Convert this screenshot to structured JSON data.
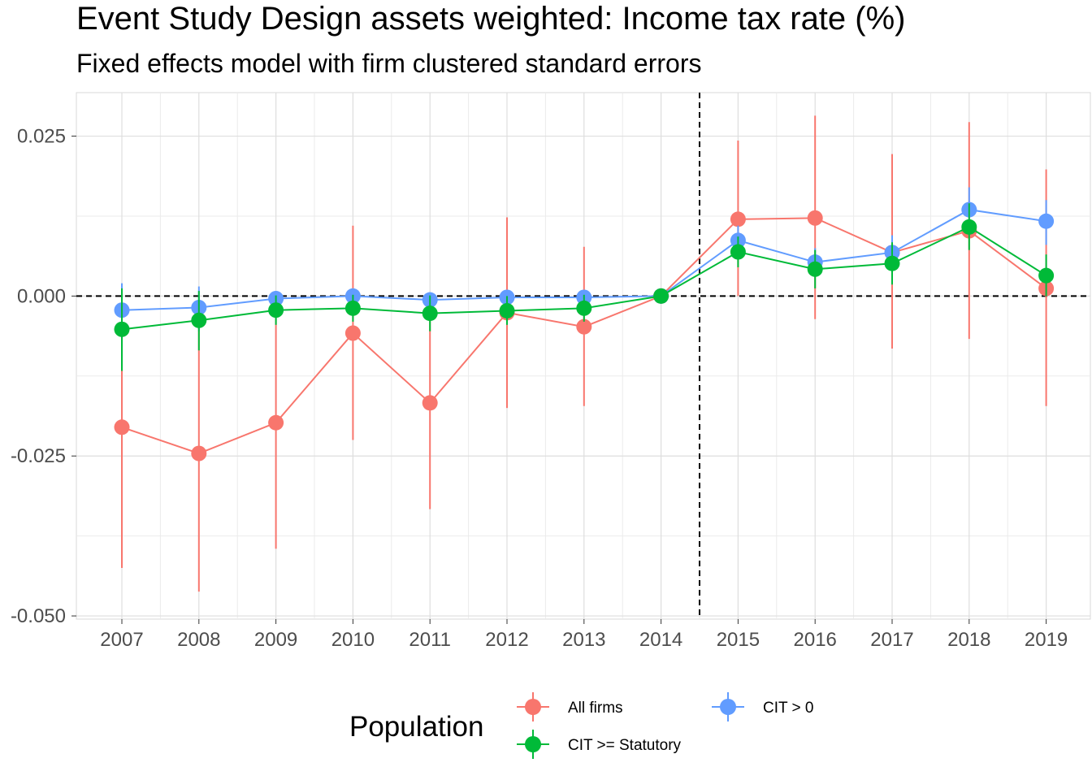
{
  "chart_data": {
    "type": "line",
    "title": "Event Study Design assets weighted: Income tax rate  (%)",
    "subtitle": "Fixed effects model with firm clustered standard errors",
    "x": [
      "2007",
      "2008",
      "2009",
      "2010",
      "2011",
      "2012",
      "2013",
      "2014",
      "2015",
      "2016",
      "2017",
      "2018",
      "2019"
    ],
    "ylim": [
      -0.0505,
      0.0318
    ],
    "y_ticks": [
      "0.025",
      "0.000",
      "-0.025",
      "-0.050"
    ],
    "y_tick_values": [
      0.025,
      0.0,
      -0.025,
      -0.05
    ],
    "grid": true,
    "reference_lines": {
      "y": 0.0,
      "x_between": [
        "2014",
        "2015"
      ]
    },
    "legend": {
      "title": "Population",
      "placement": "bottom",
      "entries": [
        "All firms",
        "CIT > 0",
        "CIT >= Statutory"
      ]
    },
    "series": [
      {
        "name": "All firms",
        "color": "#F8766D",
        "values": [
          -0.0205,
          -0.0246,
          -0.0198,
          -0.0058,
          -0.0167,
          -0.0026,
          -0.0048,
          0.0,
          0.012,
          0.0122,
          0.0068,
          0.0102,
          0.0012
        ],
        "lower": [
          -0.0425,
          -0.0462,
          -0.0395,
          -0.0225,
          -0.0333,
          -0.0175,
          -0.0172,
          0.0,
          0.0,
          -0.0036,
          -0.0082,
          -0.0067,
          -0.0172
        ],
        "upper": [
          0.0,
          -0.0025,
          -0.0005,
          0.011,
          0.0,
          0.0123,
          0.0077,
          0.0,
          0.0243,
          0.0282,
          0.0222,
          0.0272,
          0.0198
        ]
      },
      {
        "name": "CIT > 0",
        "color": "#619CFF",
        "values": [
          -0.0022,
          -0.0018,
          -0.0004,
          0.0,
          -0.0006,
          -0.0002,
          -0.0002,
          0.0,
          0.0087,
          0.0053,
          0.0068,
          0.0135,
          0.0117
        ],
        "lower": [
          -0.0065,
          -0.0055,
          -0.0015,
          -0.0012,
          -0.0018,
          -0.0012,
          -0.0012,
          0.0,
          0.0065,
          0.003,
          0.004,
          0.01,
          0.008
        ],
        "upper": [
          0.002,
          0.0015,
          0.0008,
          0.0012,
          0.0006,
          0.0008,
          0.0008,
          0.0,
          0.011,
          0.0075,
          0.0095,
          0.017,
          0.015
        ]
      },
      {
        "name": "CIT >= Statutory",
        "color": "#00BA38",
        "values": [
          -0.0052,
          -0.0038,
          -0.0022,
          -0.0019,
          -0.0027,
          -0.0023,
          -0.0019,
          0.0,
          0.0069,
          0.0042,
          0.0051,
          0.0108,
          0.0032
        ],
        "lower": [
          -0.0117,
          -0.0085,
          -0.0045,
          -0.004,
          -0.0055,
          -0.0045,
          -0.004,
          0.0,
          0.0045,
          0.0012,
          0.0018,
          0.0072,
          0.0
        ],
        "upper": [
          0.0012,
          0.0008,
          0.0001,
          0.0002,
          0.0001,
          0.0,
          0.0002,
          0.0,
          0.0093,
          0.0072,
          0.0084,
          0.0145,
          0.0065
        ]
      }
    ]
  }
}
